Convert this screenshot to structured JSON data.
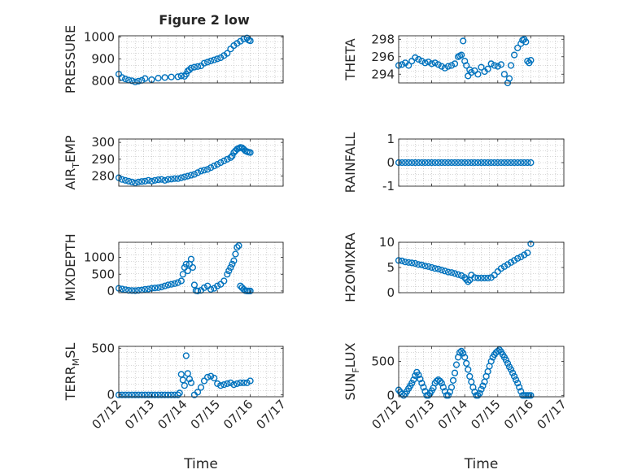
{
  "figure": {
    "title": "Figure 2 low",
    "marker_color": "#0072BD",
    "axis_color": "#262626",
    "grid_color": "#b0b0b0",
    "xlabel": "Time"
  },
  "chart_data": [
    {
      "type": "scatter",
      "panel": "pressure",
      "title": "Figure 2 low",
      "ylabel": "PRESSURE",
      "ylabel_sub": "",
      "ylabel_tail": "",
      "xlim": [
        0,
        5
      ],
      "ylim": [
        790,
        1005
      ],
      "yticks": [
        800,
        900,
        1000
      ],
      "xticks": [
        0,
        1,
        2,
        3,
        4,
        5
      ],
      "xtick_labels": [],
      "grid": true,
      "series": [
        {
          "x": [
            0.0,
            0.1,
            0.2,
            0.3,
            0.4,
            0.5,
            0.6,
            0.7,
            0.8,
            1.0,
            1.2,
            1.4,
            1.6,
            1.8,
            1.9,
            2.0,
            2.05,
            2.1,
            2.15,
            2.2,
            2.3,
            2.4,
            2.5,
            2.6,
            2.7,
            2.8,
            2.9,
            3.0,
            3.1,
            3.2,
            3.3,
            3.4,
            3.5,
            3.6,
            3.7,
            3.8,
            3.9,
            3.95,
            4.0
          ],
          "y": [
            830,
            815,
            808,
            803,
            800,
            795,
            798,
            802,
            810,
            805,
            812,
            815,
            817,
            818,
            822,
            820,
            830,
            845,
            850,
            858,
            862,
            865,
            868,
            880,
            885,
            890,
            895,
            900,
            905,
            915,
            925,
            945,
            960,
            970,
            980,
            990,
            995,
            985,
            982
          ]
        }
      ]
    },
    {
      "type": "scatter",
      "panel": "theta",
      "ylabel": "THETA",
      "ylabel_sub": "",
      "ylabel_tail": "",
      "xlim": [
        0,
        5
      ],
      "ylim": [
        293,
        298.4
      ],
      "yticks": [
        294,
        296,
        298
      ],
      "xticks": [
        0,
        1,
        2,
        3,
        4,
        5
      ],
      "xtick_labels": [],
      "grid": true,
      "series": [
        {
          "x": [
            0.0,
            0.1,
            0.2,
            0.3,
            0.4,
            0.5,
            0.6,
            0.7,
            0.8,
            0.9,
            1.0,
            1.1,
            1.2,
            1.3,
            1.4,
            1.5,
            1.6,
            1.7,
            1.8,
            1.85,
            1.9,
            1.95,
            2.0,
            2.05,
            2.1,
            2.15,
            2.2,
            2.3,
            2.4,
            2.5,
            2.6,
            2.7,
            2.8,
            2.9,
            3.0,
            3.1,
            3.2,
            3.3,
            3.35,
            3.4,
            3.5,
            3.6,
            3.7,
            3.75,
            3.8,
            3.85,
            3.9,
            3.95,
            4.0
          ],
          "y": [
            295.0,
            295.1,
            295.3,
            295.0,
            295.5,
            295.9,
            295.7,
            295.5,
            295.3,
            295.4,
            295.2,
            295.3,
            295.1,
            294.9,
            294.7,
            294.9,
            295.0,
            295.2,
            296.0,
            296.1,
            296.2,
            297.8,
            295.5,
            295.0,
            293.8,
            294.5,
            294.2,
            294.4,
            294.0,
            294.8,
            294.3,
            294.6,
            295.2,
            295.0,
            294.9,
            295.1,
            294.0,
            293.0,
            293.5,
            295.0,
            296.2,
            297.0,
            297.5,
            297.9,
            298.0,
            297.7,
            295.5,
            295.3,
            295.6
          ]
        }
      ]
    },
    {
      "type": "scatter",
      "panel": "air_temp",
      "ylabel": "AIR",
      "ylabel_sub": "T",
      "ylabel_tail": "EMP",
      "xlim": [
        0,
        5
      ],
      "ylim": [
        274,
        302
      ],
      "yticks": [
        280,
        290,
        300
      ],
      "xticks": [
        0,
        1,
        2,
        3,
        4,
        5
      ],
      "xtick_labels": [],
      "grid": true,
      "series": [
        {
          "x": [
            0.0,
            0.1,
            0.2,
            0.3,
            0.4,
            0.5,
            0.6,
            0.7,
            0.8,
            0.9,
            1.0,
            1.1,
            1.2,
            1.3,
            1.4,
            1.5,
            1.6,
            1.7,
            1.8,
            1.9,
            2.0,
            2.1,
            2.2,
            2.3,
            2.4,
            2.5,
            2.6,
            2.7,
            2.8,
            2.9,
            3.0,
            3.1,
            3.2,
            3.3,
            3.4,
            3.45,
            3.5,
            3.55,
            3.6,
            3.65,
            3.7,
            3.75,
            3.8,
            3.85,
            3.9,
            3.95,
            4.0
          ],
          "y": [
            279,
            278,
            277.5,
            277,
            276.5,
            276,
            276.5,
            276.8,
            277,
            277.5,
            277,
            277.5,
            277.8,
            278,
            277.5,
            278,
            278.2,
            278.5,
            278.5,
            279,
            279.5,
            280,
            280.5,
            281,
            282,
            283,
            283.5,
            284,
            285,
            286,
            287,
            288,
            289,
            290,
            291,
            292,
            294,
            295,
            296,
            296.5,
            297,
            296.8,
            296,
            295,
            294.5,
            294.2,
            294
          ]
        }
      ]
    },
    {
      "type": "scatter",
      "panel": "rainfall",
      "ylabel": "RAINFALL",
      "ylabel_sub": "",
      "ylabel_tail": "",
      "xlim": [
        0,
        5
      ],
      "ylim": [
        -1,
        1
      ],
      "yticks": [
        -1,
        0,
        1
      ],
      "xticks": [
        0,
        1,
        2,
        3,
        4,
        5
      ],
      "xtick_labels": [],
      "grid": true,
      "series": [
        {
          "x": [
            0.0,
            0.1,
            0.2,
            0.3,
            0.4,
            0.5,
            0.6,
            0.7,
            0.8,
            0.9,
            1.0,
            1.1,
            1.2,
            1.3,
            1.4,
            1.5,
            1.6,
            1.7,
            1.8,
            1.9,
            2.0,
            2.1,
            2.2,
            2.3,
            2.4,
            2.5,
            2.6,
            2.7,
            2.8,
            2.9,
            3.0,
            3.1,
            3.2,
            3.3,
            3.4,
            3.5,
            3.6,
            3.7,
            3.8,
            3.9,
            4.0
          ],
          "y": [
            0,
            0,
            0,
            0,
            0,
            0,
            0,
            0,
            0,
            0,
            0,
            0,
            0,
            0,
            0,
            0,
            0,
            0,
            0,
            0,
            0,
            0,
            0,
            0,
            0,
            0,
            0,
            0,
            0,
            0,
            0,
            0,
            0,
            0,
            0,
            0,
            0,
            0,
            0,
            0,
            0
          ]
        }
      ]
    },
    {
      "type": "scatter",
      "panel": "mixdepth",
      "ylabel": "MIXDEPTH",
      "ylabel_sub": "",
      "ylabel_tail": "",
      "xlim": [
        0,
        5
      ],
      "ylim": [
        -50,
        1450
      ],
      "yticks": [
        0,
        500,
        1000
      ],
      "xticks": [
        0,
        1,
        2,
        3,
        4,
        5
      ],
      "xtick_labels": [],
      "grid": true,
      "series": [
        {
          "x": [
            0.0,
            0.1,
            0.2,
            0.3,
            0.4,
            0.5,
            0.6,
            0.7,
            0.8,
            0.9,
            1.0,
            1.1,
            1.2,
            1.3,
            1.4,
            1.5,
            1.6,
            1.7,
            1.8,
            1.9,
            1.95,
            2.0,
            2.05,
            2.1,
            2.15,
            2.2,
            2.25,
            2.3,
            2.35,
            2.4,
            2.5,
            2.6,
            2.7,
            2.8,
            2.9,
            3.0,
            3.1,
            3.2,
            3.3,
            3.35,
            3.4,
            3.45,
            3.5,
            3.55,
            3.6,
            3.65,
            3.7,
            3.75,
            3.8,
            3.85,
            3.9,
            3.95,
            4.0
          ],
          "y": [
            80,
            60,
            40,
            20,
            15,
            10,
            20,
            30,
            50,
            60,
            80,
            90,
            100,
            120,
            150,
            180,
            200,
            220,
            250,
            300,
            500,
            700,
            800,
            600,
            800,
            950,
            700,
            180,
            10,
            0,
            20,
            100,
            150,
            50,
            80,
            150,
            200,
            300,
            500,
            600,
            700,
            800,
            900,
            1100,
            1300,
            1350,
            150,
            100,
            50,
            10,
            0,
            0,
            0
          ]
        }
      ]
    },
    {
      "type": "scatter",
      "panel": "h2omixra",
      "ylabel": "H2OMIXRA",
      "ylabel_sub": "",
      "ylabel_tail": "",
      "xlim": [
        0,
        5
      ],
      "ylim": [
        0,
        10
      ],
      "yticks": [
        0,
        5,
        10
      ],
      "xticks": [
        0,
        1,
        2,
        3,
        4,
        5
      ],
      "xtick_labels": [],
      "grid": true,
      "series": [
        {
          "x": [
            0.0,
            0.1,
            0.2,
            0.3,
            0.4,
            0.5,
            0.6,
            0.7,
            0.8,
            0.9,
            1.0,
            1.1,
            1.2,
            1.3,
            1.4,
            1.5,
            1.6,
            1.7,
            1.8,
            1.9,
            2.0,
            2.05,
            2.1,
            2.15,
            2.2,
            2.3,
            2.4,
            2.5,
            2.6,
            2.7,
            2.8,
            2.9,
            3.0,
            3.1,
            3.2,
            3.3,
            3.4,
            3.5,
            3.6,
            3.7,
            3.8,
            3.9,
            4.0
          ],
          "y": [
            6.4,
            6.3,
            6.1,
            6.0,
            5.9,
            5.8,
            5.6,
            5.5,
            5.3,
            5.2,
            5.0,
            4.8,
            4.7,
            4.5,
            4.3,
            4.1,
            4.0,
            3.8,
            3.6,
            3.4,
            3.0,
            2.6,
            2.2,
            2.5,
            3.5,
            3.0,
            2.9,
            2.9,
            2.9,
            2.9,
            3.0,
            3.5,
            4.2,
            4.8,
            5.2,
            5.6,
            6.0,
            6.4,
            6.8,
            7.1,
            7.5,
            7.9,
            9.7
          ]
        }
      ]
    },
    {
      "type": "scatter",
      "panel": "terr_msl",
      "ylabel": "TERR",
      "ylabel_sub": "M",
      "ylabel_tail": "SL",
      "xlim": [
        0,
        5
      ],
      "ylim": [
        -20,
        520
      ],
      "yticks": [
        0,
        500
      ],
      "xticks": [
        0,
        1,
        2,
        3,
        4,
        5
      ],
      "xtick_labels": [
        "07/12",
        "07/13",
        "07/14",
        "07/15",
        "07/16",
        "07/17"
      ],
      "xlabel": "Time",
      "grid": true,
      "series": [
        {
          "x": [
            0.0,
            0.1,
            0.2,
            0.3,
            0.4,
            0.5,
            0.6,
            0.7,
            0.8,
            0.9,
            1.0,
            1.1,
            1.2,
            1.3,
            1.4,
            1.5,
            1.6,
            1.7,
            1.8,
            1.85,
            1.9,
            1.95,
            2.0,
            2.05,
            2.1,
            2.15,
            2.2,
            2.3,
            2.4,
            2.5,
            2.6,
            2.7,
            2.8,
            2.9,
            3.0,
            3.1,
            3.2,
            3.3,
            3.4,
            3.5,
            3.6,
            3.7,
            3.8,
            3.9,
            4.0
          ],
          "y": [
            0,
            0,
            0,
            0,
            0,
            0,
            0,
            0,
            0,
            0,
            0,
            0,
            0,
            0,
            0,
            0,
            0,
            0,
            0,
            20,
            220,
            160,
            100,
            420,
            230,
            170,
            130,
            0,
            30,
            80,
            150,
            190,
            200,
            180,
            120,
            100,
            110,
            120,
            130,
            110,
            120,
            130,
            130,
            130,
            150
          ]
        }
      ]
    },
    {
      "type": "scatter",
      "panel": "sun_flux",
      "ylabel": "SUN",
      "ylabel_sub": "F",
      "ylabel_tail": "LUX",
      "xlim": [
        0,
        5
      ],
      "ylim": [
        -20,
        720
      ],
      "yticks": [
        0,
        500
      ],
      "xticks": [
        0,
        1,
        2,
        3,
        4,
        5
      ],
      "xtick_labels": [
        "07/12",
        "07/13",
        "07/14",
        "07/15",
        "07/16",
        "07/17"
      ],
      "xlabel": "Time",
      "grid": true,
      "series": [
        {
          "x": [
            0.0,
            0.05,
            0.1,
            0.15,
            0.2,
            0.25,
            0.3,
            0.35,
            0.4,
            0.45,
            0.5,
            0.55,
            0.6,
            0.65,
            0.7,
            0.75,
            0.8,
            0.85,
            0.9,
            0.95,
            1.0,
            1.05,
            1.1,
            1.15,
            1.2,
            1.25,
            1.3,
            1.35,
            1.4,
            1.45,
            1.5,
            1.55,
            1.6,
            1.65,
            1.7,
            1.75,
            1.8,
            1.85,
            1.9,
            1.95,
            2.0,
            2.05,
            2.1,
            2.15,
            2.2,
            2.25,
            2.3,
            2.35,
            2.4,
            2.45,
            2.5,
            2.55,
            2.6,
            2.65,
            2.7,
            2.75,
            2.8,
            2.85,
            2.9,
            2.95,
            3.0,
            3.05,
            3.1,
            3.15,
            3.2,
            3.25,
            3.3,
            3.35,
            3.4,
            3.45,
            3.5,
            3.55,
            3.6,
            3.65,
            3.7,
            3.75,
            3.8,
            3.85,
            3.9,
            3.95,
            4.0
          ],
          "y": [
            80,
            50,
            20,
            0,
            20,
            60,
            100,
            140,
            180,
            230,
            290,
            340,
            300,
            240,
            180,
            120,
            60,
            0,
            0,
            30,
            70,
            110,
            180,
            210,
            230,
            210,
            180,
            120,
            60,
            0,
            0,
            50,
            120,
            220,
            330,
            450,
            560,
            630,
            650,
            620,
            560,
            470,
            380,
            280,
            200,
            120,
            50,
            0,
            0,
            30,
            90,
            140,
            200,
            280,
            350,
            430,
            500,
            560,
            600,
            630,
            650,
            670,
            640,
            600,
            560,
            520,
            470,
            420,
            380,
            330,
            280,
            230,
            180,
            120,
            60,
            0,
            0,
            0,
            0,
            0,
            0
          ]
        }
      ]
    }
  ]
}
